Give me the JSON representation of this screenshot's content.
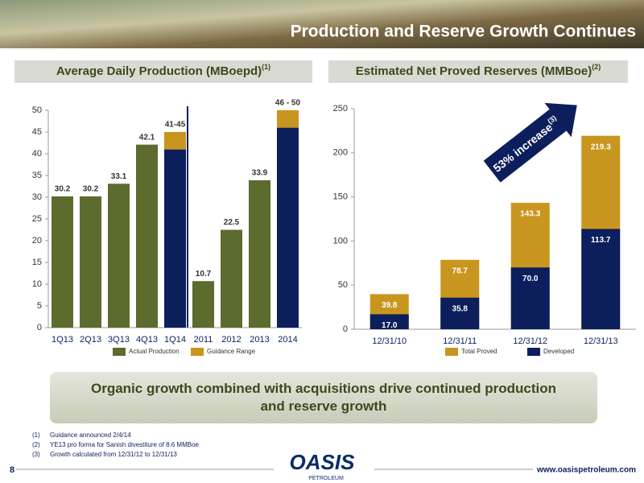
{
  "slide": {
    "title": "Production and Reserve Growth Continues",
    "callout": "Organic growth combined with acquisitions drive continued production and reserve growth",
    "footnotes": [
      {
        "marker": "(1)",
        "text": "Guidance announced 2/4/14"
      },
      {
        "marker": "(2)",
        "text": "YE13 pro forma for Sanish divestiture of 8.6 MMBoe"
      },
      {
        "marker": "(3)",
        "text": "Growth calculated from 12/31/12 to 12/31/13"
      }
    ],
    "page_number": "8",
    "logo": {
      "name": "OASIS",
      "tagline": "PETROLEUM"
    },
    "url": "www.oasispetroleum.com"
  },
  "chart_data": [
    {
      "type": "bar",
      "title": "Average Daily Production (MBoepd)",
      "title_note": "(1)",
      "categories": [
        "1Q13",
        "2Q13",
        "3Q13",
        "4Q13",
        "1Q14",
        "2011",
        "2012",
        "2013",
        "2014"
      ],
      "series": [
        {
          "name": "Actual Production",
          "color": "#5c6b2e",
          "values": [
            30.2,
            30.2,
            33.1,
            42.1,
            null,
            10.7,
            22.5,
            33.9,
            null
          ]
        },
        {
          "name": "Guidance Range",
          "color": "#c8951e",
          "base_color": "#0c1f5c",
          "low": [
            null,
            null,
            null,
            null,
            41,
            null,
            null,
            null,
            46
          ],
          "high": [
            null,
            null,
            null,
            null,
            45,
            null,
            null,
            null,
            50
          ],
          "value_labels": [
            null,
            null,
            null,
            null,
            "41-45",
            null,
            null,
            null,
            "46 - 50"
          ]
        }
      ],
      "ylim": [
        0,
        50
      ],
      "yticks": [
        0,
        5,
        10,
        15,
        20,
        25,
        30,
        35,
        40,
        45,
        50
      ],
      "grid": false,
      "label_position": "above"
    },
    {
      "type": "bar",
      "title": "Estimated Net Proved Reserves (MMBoe)",
      "title_note": "(2)",
      "categories": [
        "12/31/10",
        "12/31/11",
        "12/31/12",
        "12/31/13"
      ],
      "series": [
        {
          "name": "Total Proved",
          "color": "#c8951e",
          "values": [
            39.8,
            78.7,
            143.3,
            219.3
          ]
        },
        {
          "name": "Developed",
          "color": "#0c1f5c",
          "values": [
            17,
            35.8,
            70,
            113.7
          ],
          "value_labels": [
            "17.0",
            "35.8",
            "70.0",
            "113.7"
          ]
        }
      ],
      "ylim": [
        0,
        250
      ],
      "yticks": [
        0,
        50,
        100,
        150,
        200,
        250
      ],
      "grid": false,
      "label_position": "inside",
      "annotation": {
        "text": "53% increase",
        "note": "(3)"
      }
    }
  ]
}
